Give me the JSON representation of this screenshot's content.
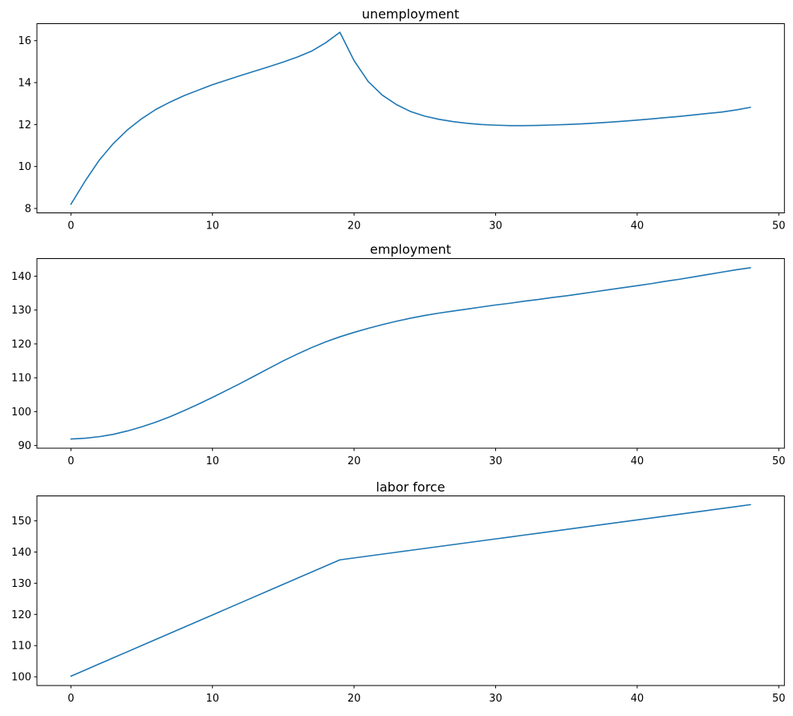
{
  "figure": {
    "background_color": "#ffffff",
    "text_color": "#000000",
    "spine_color": "#000000"
  },
  "chart_data": [
    {
      "type": "line",
      "title": "unemployment",
      "line_color": "#1f77b4",
      "grid": false,
      "legend": null,
      "xlabel": "",
      "ylabel": "",
      "xlim": [
        -2.4,
        50.4
      ],
      "ylim": [
        7.79,
        16.81
      ],
      "xticks": [
        0,
        10,
        20,
        30,
        40,
        50
      ],
      "yticks": [
        8,
        10,
        12,
        14,
        16
      ],
      "x": [
        0,
        1,
        2,
        3,
        4,
        5,
        6,
        7,
        8,
        9,
        10,
        11,
        12,
        13,
        14,
        15,
        16,
        17,
        18,
        19,
        20,
        21,
        22,
        23,
        24,
        25,
        26,
        27,
        28,
        29,
        30,
        31,
        32,
        33,
        34,
        35,
        36,
        37,
        38,
        39,
        40,
        41,
        42,
        43,
        44,
        45,
        46,
        47,
        48
      ],
      "values": [
        8.2,
        9.3,
        10.3,
        11.1,
        11.75,
        12.28,
        12.72,
        13.07,
        13.38,
        13.64,
        13.9,
        14.12,
        14.34,
        14.55,
        14.76,
        14.98,
        15.22,
        15.5,
        15.9,
        16.4,
        15.05,
        14.05,
        13.4,
        12.95,
        12.62,
        12.4,
        12.25,
        12.14,
        12.06,
        12.0,
        11.97,
        11.95,
        11.95,
        11.96,
        11.98,
        12.0,
        12.03,
        12.07,
        12.11,
        12.16,
        12.21,
        12.27,
        12.33,
        12.39,
        12.46,
        12.53,
        12.6,
        12.7,
        12.82
      ]
    },
    {
      "type": "line",
      "title": "employment",
      "line_color": "#1f77b4",
      "grid": false,
      "legend": null,
      "xlabel": "",
      "ylabel": "",
      "xlim": [
        -2.4,
        50.4
      ],
      "ylim": [
        89.2,
        145.2
      ],
      "xticks": [
        0,
        10,
        20,
        30,
        40,
        50
      ],
      "yticks": [
        90,
        100,
        110,
        120,
        130,
        140
      ],
      "x": [
        0,
        1,
        2,
        3,
        4,
        5,
        6,
        7,
        8,
        9,
        10,
        11,
        12,
        13,
        14,
        15,
        16,
        17,
        18,
        19,
        20,
        21,
        22,
        23,
        24,
        25,
        26,
        27,
        28,
        29,
        30,
        31,
        32,
        33,
        34,
        35,
        36,
        37,
        38,
        39,
        40,
        41,
        42,
        43,
        44,
        45,
        46,
        47,
        48
      ],
      "values": [
        91.9,
        92.15,
        92.6,
        93.3,
        94.3,
        95.5,
        96.9,
        98.5,
        100.3,
        102.2,
        104.2,
        106.3,
        108.4,
        110.6,
        112.8,
        115.0,
        117.0,
        118.9,
        120.6,
        122.1,
        123.4,
        124.6,
        125.7,
        126.7,
        127.6,
        128.4,
        129.1,
        129.7,
        130.3,
        130.9,
        131.5,
        132.0,
        132.6,
        133.1,
        133.7,
        134.2,
        134.8,
        135.4,
        136.0,
        136.6,
        137.2,
        137.8,
        138.5,
        139.1,
        139.8,
        140.5,
        141.2,
        141.9,
        142.5
      ]
    },
    {
      "type": "line",
      "title": "labor force",
      "line_color": "#1f77b4",
      "grid": false,
      "legend": null,
      "xlabel": "",
      "ylabel": "",
      "xlim": [
        -2.4,
        50.4
      ],
      "ylim": [
        97.2,
        158.0
      ],
      "xticks": [
        0,
        10,
        20,
        30,
        40,
        50
      ],
      "yticks": [
        100,
        110,
        120,
        130,
        140,
        150
      ],
      "x": [
        0,
        1,
        2,
        3,
        4,
        5,
        6,
        7,
        8,
        9,
        10,
        11,
        12,
        13,
        14,
        15,
        16,
        17,
        18,
        19,
        20,
        21,
        22,
        23,
        24,
        25,
        26,
        27,
        28,
        29,
        30,
        31,
        32,
        33,
        34,
        35,
        36,
        37,
        38,
        39,
        40,
        41,
        42,
        43,
        44,
        45,
        46,
        47,
        48
      ],
      "values": [
        100.2,
        102.16,
        104.13,
        106.09,
        108.05,
        110.02,
        111.98,
        113.94,
        115.91,
        117.87,
        119.83,
        121.8,
        123.76,
        125.72,
        127.69,
        129.65,
        131.61,
        133.58,
        135.54,
        137.5,
        138.11,
        138.72,
        139.33,
        139.94,
        140.55,
        141.16,
        141.77,
        142.38,
        142.99,
        143.6,
        144.21,
        144.82,
        145.43,
        146.04,
        146.65,
        147.26,
        147.87,
        148.48,
        149.09,
        149.7,
        150.31,
        150.92,
        151.53,
        152.14,
        152.75,
        153.36,
        153.97,
        154.58,
        155.2
      ]
    }
  ]
}
